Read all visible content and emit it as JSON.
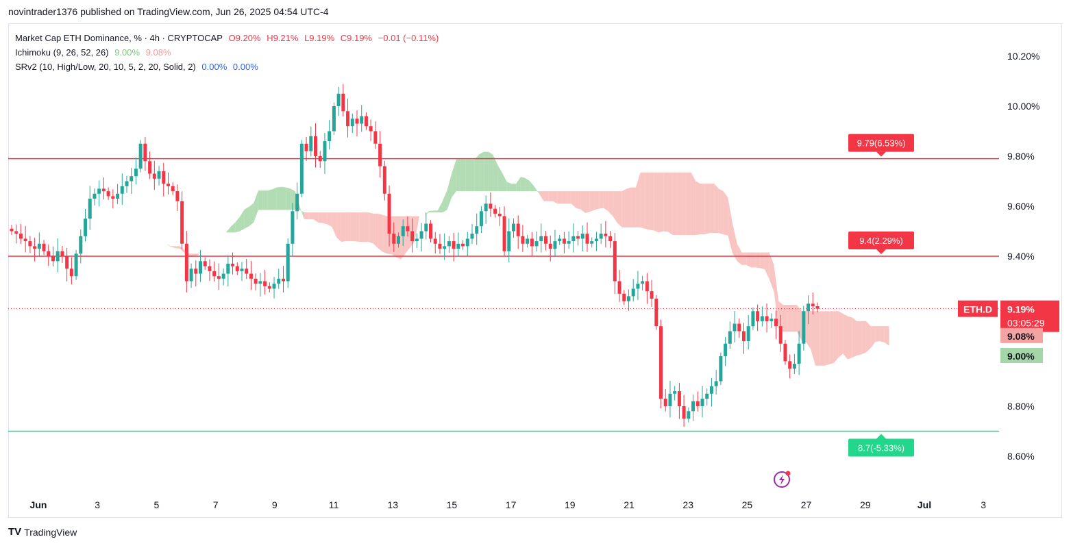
{
  "header": {
    "published": "novintrader1376 published on TradingView.com, Jun 26, 2025 04:54 UTC-4"
  },
  "legend": {
    "symbol": "Market Cap ETH Dominance, % · 4h · CRYPTOCAP",
    "open": "O9.20%",
    "high": "H9.21%",
    "low": "L9.19%",
    "close": "C9.19%",
    "change": "−0.01 (−0.11%)",
    "ichimoku_name": "Ichimoku (9, 26, 52, 26)",
    "ichimoku_v1": "9.00%",
    "ichimoku_v2": "9.08%",
    "srv2_name": "SRv2 (10, High/Low, 20, 10, 5, 2, 20, Solid, 2)",
    "srv2_v1": "0.00%",
    "srv2_v2": "0.00%"
  },
  "footer": {
    "logo": "TV",
    "brand": "TradingView"
  },
  "colors": {
    "up": "#089981",
    "upBody": "#26a69a",
    "down": "#f23645",
    "cloudGreen": "#a5d6a7",
    "cloudRed": "#f8bbb9",
    "levelRed": "#f23645",
    "levelGreen": "#22d68c"
  },
  "chart_data": {
    "type": "candlestick",
    "symbol": "ETH.D",
    "ylim": [
      8.5,
      10.3
    ],
    "y_ticks": [
      "10.20%",
      "10.00%",
      "9.80%",
      "9.60%",
      "9.40%",
      "8.80%",
      "8.60%"
    ],
    "y_tick_values": [
      10.2,
      10.0,
      9.8,
      9.6,
      9.4,
      8.8,
      8.6
    ],
    "x_ticks": [
      "Jun",
      "3",
      "5",
      "7",
      "9",
      "11",
      "13",
      "15",
      "17",
      "19",
      "21",
      "23",
      "25",
      "27",
      "29",
      "Jul",
      "3"
    ],
    "x_tick_days": [
      1,
      3,
      5,
      7,
      9,
      11,
      13,
      15,
      17,
      19,
      21,
      23,
      25,
      27,
      29,
      31,
      33
    ],
    "levels": [
      {
        "value": 9.79,
        "label": "9.79(6.53%)",
        "color": "red"
      },
      {
        "value": 9.4,
        "label": "9.4(2.29%)",
        "color": "red"
      },
      {
        "value": 8.7,
        "label": "8.7(-5.33%)",
        "color": "green"
      }
    ],
    "price_label": {
      "name": "ETH.D",
      "value": "9.19%",
      "countdown": "03:05:29",
      "price": 9.19
    },
    "ichimoku_labels": [
      {
        "value": "9.08%",
        "price": 9.08
      },
      {
        "value": "9.00%",
        "price": 9.0
      }
    ],
    "candles_close": [
      9.5,
      9.49,
      9.47,
      9.46,
      9.44,
      9.43,
      9.45,
      9.42,
      9.4,
      9.38,
      9.42,
      9.4,
      9.35,
      9.32,
      9.41,
      9.48,
      9.55,
      9.63,
      9.65,
      9.67,
      9.66,
      9.64,
      9.63,
      9.65,
      9.68,
      9.7,
      9.72,
      9.75,
      9.85,
      9.78,
      9.73,
      9.71,
      9.74,
      9.69,
      9.68,
      9.66,
      9.62,
      9.45,
      9.3,
      9.35,
      9.33,
      9.38,
      9.36,
      9.34,
      9.32,
      9.31,
      9.33,
      9.37,
      9.36,
      9.34,
      9.35,
      9.33,
      9.31,
      9.29,
      9.3,
      9.28,
      9.27,
      9.29,
      9.31,
      9.3,
      9.45,
      9.58,
      9.65,
      9.85,
      9.82,
      9.88,
      9.8,
      9.78,
      9.86,
      9.9,
      10.0,
      10.05,
      9.98,
      9.92,
      9.95,
      9.93,
      9.96,
      9.92,
      9.9,
      9.85,
      9.76,
      9.65,
      9.49,
      9.45,
      9.48,
      9.52,
      9.5,
      9.46,
      9.47,
      9.5,
      9.53,
      9.47,
      9.45,
      9.43,
      9.44,
      9.46,
      9.43,
      9.45,
      9.44,
      9.47,
      9.49,
      9.52,
      9.58,
      9.61,
      9.59,
      9.57,
      9.56,
      9.42,
      9.5,
      9.53,
      9.48,
      9.45,
      9.47,
      9.44,
      9.46,
      9.48,
      9.45,
      9.43,
      9.46,
      9.47,
      9.45,
      9.46,
      9.48,
      9.47,
      9.49,
      9.45,
      9.46,
      9.47,
      9.49,
      9.48,
      9.46,
      9.3,
      9.25,
      9.22,
      9.24,
      9.27,
      9.29,
      9.3,
      9.26,
      9.23,
      9.12,
      8.83,
      8.8,
      8.85,
      8.86,
      8.8,
      8.75,
      8.78,
      8.82,
      8.8,
      8.83,
      8.85,
      8.88,
      8.9,
      9.0,
      9.05,
      9.1,
      9.13,
      9.1,
      9.06,
      9.12,
      9.18,
      9.14,
      9.16,
      9.14,
      9.15,
      9.12,
      9.05,
      8.98,
      8.95,
      8.97,
      9.05,
      9.18,
      9.21,
      9.2,
      9.19
    ]
  }
}
